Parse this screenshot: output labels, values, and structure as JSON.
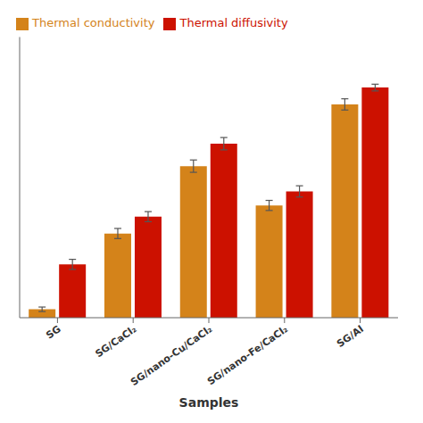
{
  "chart_data": {
    "type": "bar",
    "xlabel": "Samples",
    "categories": [
      "SG",
      "SG/CaCl₂",
      "SG/nano-Cu/CaCl₂",
      "SG/nano-Fe/CaCl₂",
      "SG/Al"
    ],
    "series": [
      {
        "name": "Thermal conductivity",
        "color": "#D4831A",
        "values": [
          0.03,
          0.3,
          0.54,
          0.4,
          0.76
        ],
        "errors": [
          0.008,
          0.018,
          0.022,
          0.018,
          0.02
        ]
      },
      {
        "name": "Thermal diffusivity",
        "color": "#CC1100",
        "values": [
          0.19,
          0.36,
          0.62,
          0.45,
          0.82
        ],
        "errors": [
          0.018,
          0.018,
          0.022,
          0.02,
          0.012
        ]
      }
    ],
    "ylim": [
      0,
      1.0
    ],
    "legend": "upper left",
    "tick_labels": "x"
  }
}
